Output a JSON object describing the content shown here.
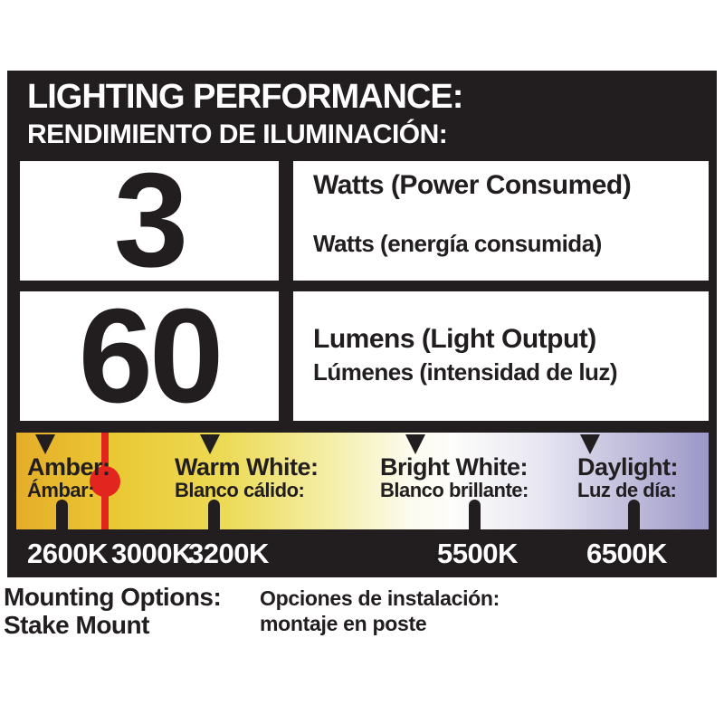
{
  "header": {
    "title_en": "LIGHTING PERFORMANCE:",
    "title_es": "RENDIMIENTO DE ILUMINACIÓN:"
  },
  "specs": [
    {
      "value": "3",
      "label_en": "Watts (Power Consumed)",
      "label_es": "Watts (energía consumida)"
    },
    {
      "value": "60",
      "label_en": "Lumens (Light Output)",
      "label_es": "Lúmenes (intensidad de luz)"
    }
  ],
  "color_scale": {
    "categories": [
      {
        "label_en": "Amber:",
        "label_es": "Ámbar:"
      },
      {
        "label_en": "Warm White:",
        "label_es": "Blanco cálido:"
      },
      {
        "label_en": "Bright White:",
        "label_es": "Blanco brillante:"
      },
      {
        "label_en": "Daylight:",
        "label_es": "Luz de día:"
      }
    ],
    "temperatures": [
      "2600K",
      "3000K",
      "3200K",
      "5500K",
      "6500K"
    ],
    "indicator_color": "#e2261f",
    "gradient_colors": [
      "#e5ad2a",
      "#eac833",
      "#f4eea6",
      "#fdfdfa",
      "#c2bfdc",
      "#9b97c8"
    ],
    "panel_color": "#221e1f"
  },
  "mounting": {
    "title_en": "Mounting Options:",
    "value_en": "Stake Mount",
    "title_es": "Opciones de instalación:",
    "value_es": "montaje en poste"
  }
}
